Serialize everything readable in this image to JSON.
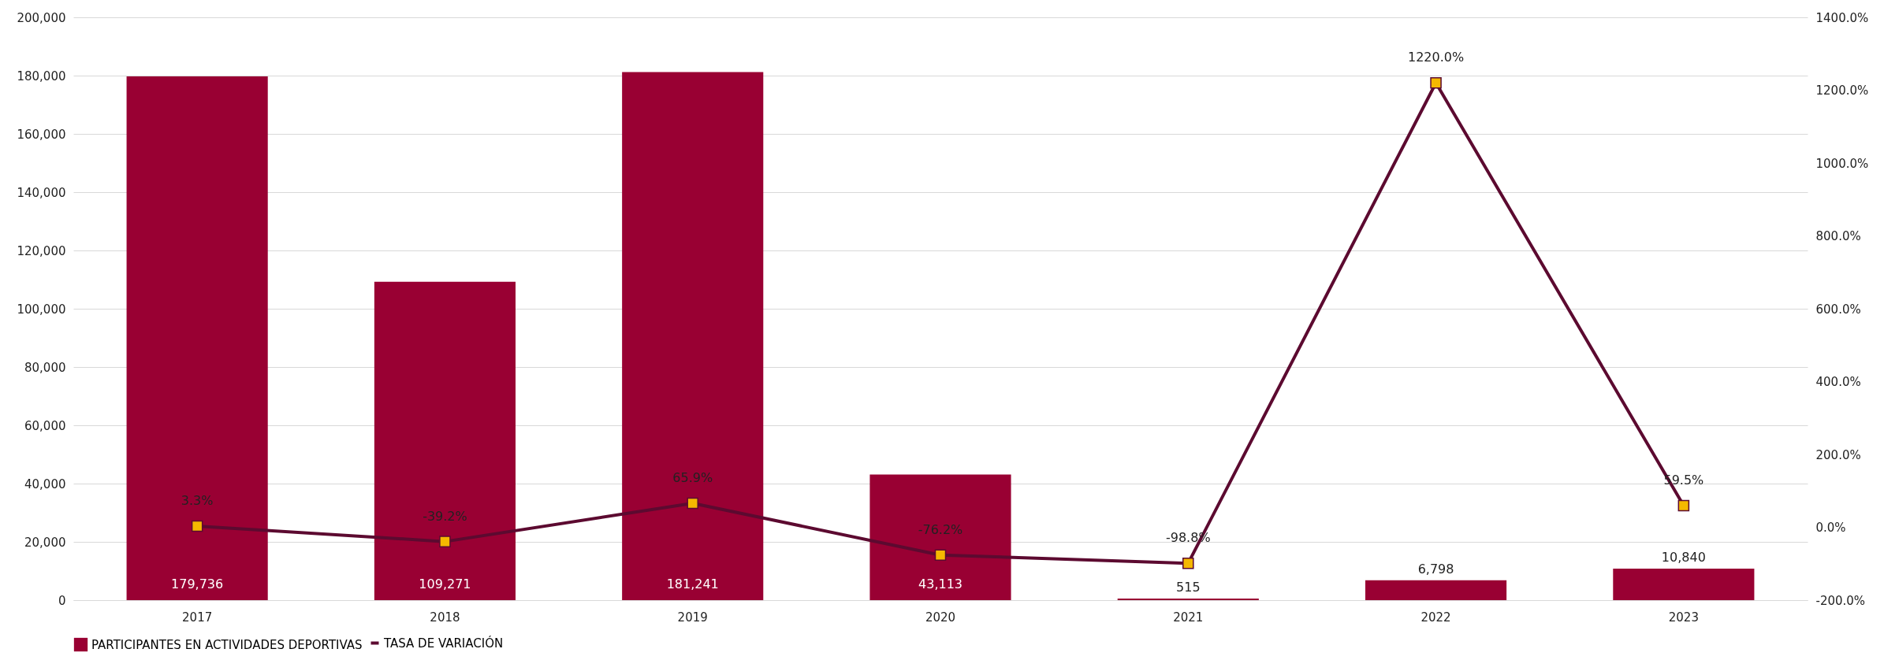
{
  "chart_data": {
    "type": "bar",
    "categories": [
      "2017",
      "2018",
      "2019",
      "2020",
      "2021",
      "2022",
      "2023"
    ],
    "series": [
      {
        "name": "PARTICIPANTES EN ACTIVIDADES DEPORTIVAS",
        "color": "#990033",
        "values": [
          179736,
          109271,
          181241,
          43113,
          515,
          6798,
          10840
        ],
        "value_labels": [
          "179,736",
          "109,271",
          "181,241",
          "43,113",
          "515",
          "6,798",
          "10,840"
        ]
      },
      {
        "name": "TASA DE VARIACIÓN",
        "type": "line",
        "axis": "y2",
        "color": "#5c0a30",
        "values": [
          3.3,
          -39.2,
          65.9,
          -76.2,
          -98.8,
          1220.0,
          59.5
        ],
        "value_labels": [
          "3.3%",
          "-39.2%",
          "65.9%",
          "-76.2%",
          "-98.8%",
          "1220.0%",
          "59.5%"
        ]
      }
    ],
    "ylim": [
      0,
      200000
    ],
    "yticks": [
      0,
      {
        "value": 20000,
        "label": "20,000"
      },
      {
        "value": 40000,
        "label": "40,000"
      },
      {
        "value": 60000,
        "label": "60,000"
      },
      {
        "value": 80000,
        "label": "80,000"
      },
      {
        "value": 100000,
        "label": "100,000"
      },
      {
        "value": 120000,
        "label": "120,000"
      },
      {
        "value": 140000,
        "label": "140,000"
      },
      {
        "value": 160000,
        "label": "160,000"
      },
      {
        "value": 180000,
        "label": "180,000"
      },
      {
        "value": 200000,
        "label": "200,000"
      }
    ],
    "y2lim": [
      -200,
      1400
    ],
    "y2ticks": [
      {
        "value": -200,
        "label": "-200.0%"
      },
      {
        "value": 0,
        "label": "0.0%"
      },
      {
        "value": 200,
        "label": "200.0%"
      },
      {
        "value": 400,
        "label": "400.0%"
      },
      {
        "value": 600,
        "label": "600.0%"
      },
      {
        "value": 800,
        "label": "800.0%"
      },
      {
        "value": 1000,
        "label": "1000.0%"
      },
      {
        "value": 1200,
        "label": "1200.0%"
      },
      {
        "value": 1400,
        "label": "1400.0%"
      }
    ],
    "grid": "y",
    "legend": "bottom",
    "marker": "square"
  }
}
